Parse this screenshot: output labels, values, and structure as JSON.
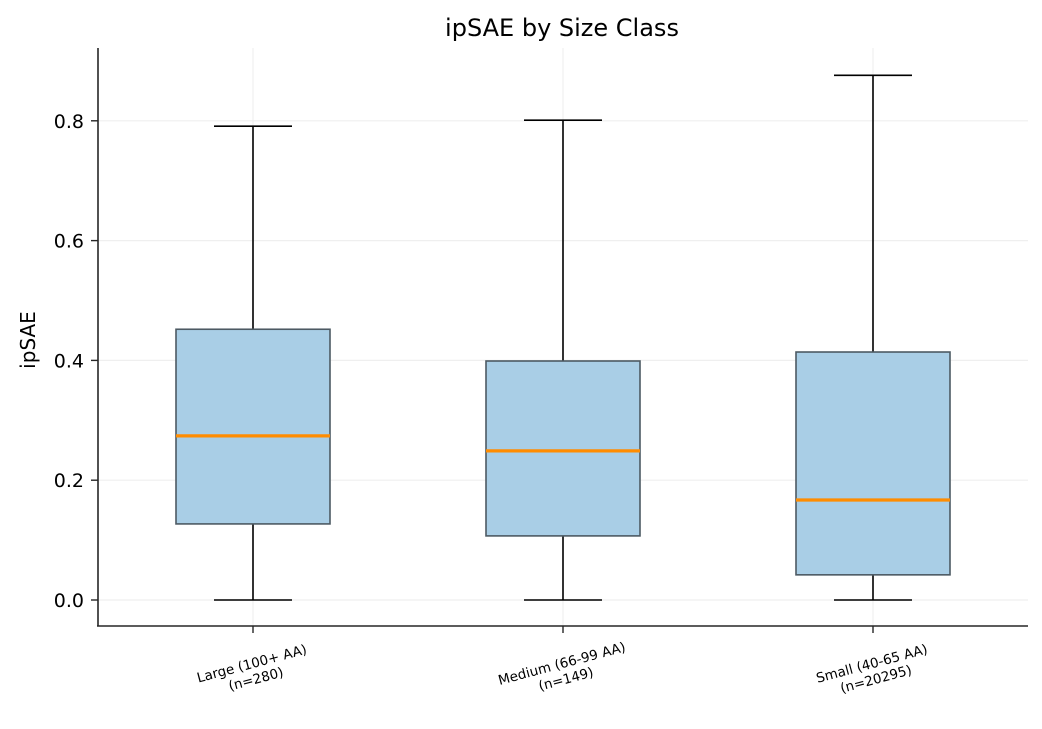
{
  "chart_data": {
    "type": "box",
    "title": "ipSAE by Size Class",
    "xlabel": "",
    "ylabel": "ipSAE",
    "ylim": [
      -0.043,
      0.92
    ],
    "yticks": [
      0.0,
      0.2,
      0.4,
      0.6,
      0.8
    ],
    "ytick_labels": [
      "0.0",
      "0.2",
      "0.4",
      "0.6",
      "0.8"
    ],
    "grid": true,
    "categories": [
      {
        "line1": "Large (100+ AA)",
        "line2": "(n=280)"
      },
      {
        "line1": "Medium (66-99 AA)",
        "line2": "(n=149)"
      },
      {
        "line1": "Small (40-65 AA)",
        "line2": "(n=20295)"
      }
    ],
    "series": [
      {
        "name": "Large (100+ AA)",
        "n": 280,
        "whisker_low": 0.0,
        "q1": 0.127,
        "median": 0.274,
        "q3": 0.452,
        "whisker_high": 0.791
      },
      {
        "name": "Medium (66-99 AA)",
        "n": 149,
        "whisker_low": 0.0,
        "q1": 0.107,
        "median": 0.249,
        "q3": 0.399,
        "whisker_high": 0.801
      },
      {
        "name": "Small (40-65 AA)",
        "n": 20295,
        "whisker_low": 0.0,
        "q1": 0.042,
        "median": 0.167,
        "q3": 0.414,
        "whisker_high": 0.876
      }
    ],
    "colors": {
      "box_fill": "#a6cce5",
      "box_edge": "#4d5a63",
      "median": "#ff8c00",
      "whisker": "#000000",
      "grid": "#efefef",
      "axis": "#262626"
    }
  }
}
